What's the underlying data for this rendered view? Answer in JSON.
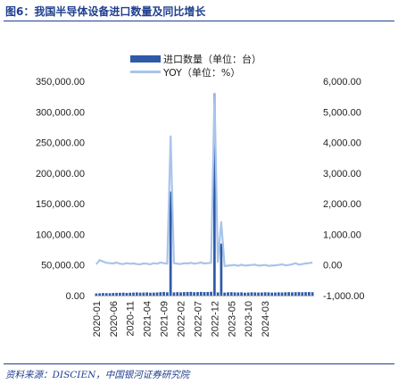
{
  "header": {
    "title": "图6：我国半导体设备进口数量及同比增长"
  },
  "footer": {
    "source": "资料来源：DISCIEN，中国银河证券研究院"
  },
  "colors": {
    "bars": "#2f5aa8",
    "line": "#a9c4ea",
    "accent": "#1f3f8f"
  },
  "chart_data": {
    "type": "bar",
    "title": "",
    "xlabel": "",
    "ylabel": "",
    "legend_position": "top",
    "grid": false,
    "x_tick_labels": [
      "2020-01",
      "2020-06",
      "2020-11",
      "2021-04",
      "2021-09",
      "2022-02",
      "2022-07",
      "2022-12",
      "2023-05",
      "2023-10",
      "2024-03"
    ],
    "y_left_ticks": [
      "0.00",
      "50,000.00",
      "100,000.00",
      "150,000.00",
      "200,000.00",
      "250,000.00",
      "300,000.00",
      "350,000.00"
    ],
    "y_right_ticks": [
      "-1,000.00",
      "0.00",
      "1,000.00",
      "2,000.00",
      "3,000.00",
      "4,000.00",
      "5,000.00",
      "6,000.00"
    ],
    "ylim_left": [
      0,
      350000
    ],
    "ylim_right": [
      -1000,
      6000
    ],
    "series": [
      {
        "name": "进口数量（单位：台）",
        "type": "bar",
        "axis": "left",
        "values": [
          3500,
          3800,
          4200,
          4000,
          3900,
          4300,
          4500,
          4600,
          4800,
          4400,
          4700,
          4900,
          5200,
          4800,
          5000,
          5300,
          4700,
          4900,
          5100,
          5600,
          6000,
          5400,
          170000,
          5200,
          5600,
          5300,
          5700,
          5900,
          6100,
          5500,
          5800,
          6000,
          5700,
          5900,
          6200,
          330000,
          5200,
          85000,
          4900,
          5400,
          5600,
          5200,
          5100,
          5300,
          4800,
          5000,
          5400,
          5200,
          5000,
          5100,
          5400,
          5300,
          4900,
          5000,
          5300,
          5100,
          5400,
          5600,
          5300,
          5500,
          5700,
          5400,
          5600,
          5800,
          5500
        ]
      },
      {
        "name": "YOY（单位：%）",
        "type": "line",
        "axis": "right",
        "values": [
          20,
          160,
          110,
          70,
          60,
          50,
          80,
          40,
          30,
          60,
          40,
          50,
          30,
          20,
          50,
          40,
          20,
          60,
          40,
          80,
          60,
          40,
          4200,
          60,
          40,
          30,
          60,
          50,
          70,
          40,
          60,
          80,
          50,
          60,
          70,
          5600,
          100,
          1400,
          -40,
          -20,
          -10,
          0,
          -30,
          10,
          -20,
          -10,
          0,
          10,
          -20,
          -10,
          0,
          -30,
          -20,
          -10,
          0,
          20,
          -10,
          0,
          20,
          60,
          10,
          30,
          50,
          60,
          80
        ]
      }
    ]
  }
}
